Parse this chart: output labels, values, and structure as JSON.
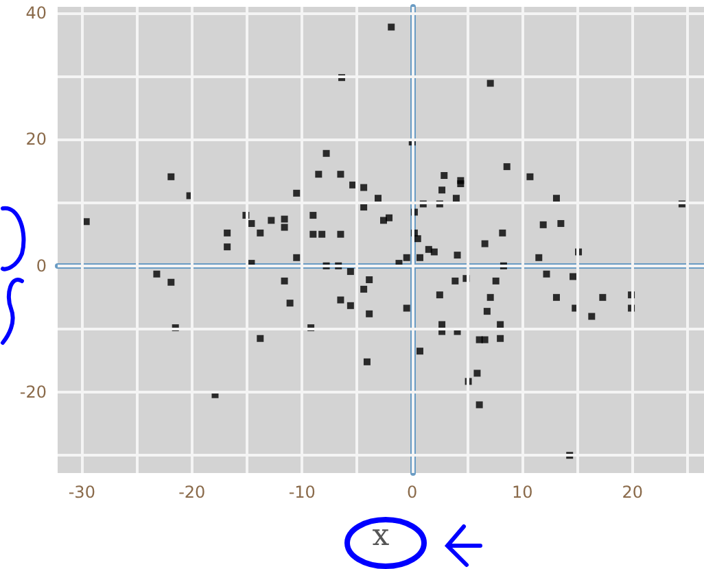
{
  "chart_data": {
    "type": "scatter",
    "xlabel": "x",
    "marker": "square",
    "grid": true,
    "xlim": [
      -32.2,
      26.5
    ],
    "ylim": [
      -32.8,
      41
    ],
    "xticks": [
      -30,
      {
        "value": -25,
        "label": null
      },
      -20,
      {
        "value": -15,
        "label": null
      },
      -10,
      {
        "value": -5,
        "label": null
      },
      0,
      {
        "value": 5,
        "label": null
      },
      10,
      {
        "value": 15,
        "label": null
      },
      20,
      {
        "value": 25,
        "label": null
      }
    ],
    "yticks": [
      {
        "value": -30,
        "label": null
      },
      -20,
      {
        "value": -10,
        "label": null
      },
      0,
      {
        "value": 10,
        "label": null
      },
      20,
      {
        "value": 30,
        "label": null
      },
      40
    ],
    "series": [
      {
        "color": "#000000",
        "x": [
          -29.6,
          -21.9,
          -20.2,
          -15.1,
          -14.6,
          -12.8,
          -13.8,
          -16.8,
          -16.8,
          -14.6,
          -23.2,
          -21.9,
          -21.5,
          -13.8,
          -17.9,
          -1.9,
          -6.4,
          0,
          -7.8,
          -8.5,
          -6.5,
          -5.4,
          -4.4,
          -10.5,
          -3.1,
          -9.0,
          -11.6,
          -8.2,
          -9.0,
          -6.5,
          -4.4,
          -2.6,
          -2.1,
          2.9,
          4.4,
          4.4,
          2.7,
          4.0,
          2.5,
          1.0,
          0.2,
          0.2,
          0.5,
          -11.6,
          7.1,
          8.6,
          10.7,
          13.1,
          24.5,
          11.9,
          13.5,
          8.2,
          6.6,
          -10.5,
          -7.8,
          -6.7,
          -5.6,
          -11.6,
          -11.1,
          -9.2,
          -6.5,
          -5.6,
          -4.4,
          -3.9,
          -3.9,
          -4.1,
          -1.2,
          -0.5,
          -0.5,
          0.7,
          1.5,
          2.0,
          4.1,
          3.9,
          4.9,
          2.5,
          2.7,
          2.7,
          4.1,
          0.7,
          5.1,
          5.9,
          6.1,
          6.1,
          6.6,
          8.3,
          11.5,
          15.1,
          12.2,
          14.6,
          7.6,
          7.1,
          6.8,
          13.1,
          14.8,
          17.3,
          16.3,
          19.9,
          19.9,
          8.0,
          8.0,
          14.3
        ],
        "values": [
          7.0,
          14.1,
          11.1,
          8.0,
          6.7,
          7.2,
          5.2,
          5.2,
          3.0,
          0.4,
          -1.3,
          -2.6,
          -9.8,
          -11.5,
          -20.4,
          37.8,
          29.8,
          19.6,
          17.8,
          14.5,
          14.5,
          12.8,
          12.4,
          11.5,
          10.7,
          8.0,
          7.4,
          5.0,
          5.0,
          5.0,
          9.3,
          7.2,
          7.6,
          14.3,
          13.5,
          13.0,
          12.0,
          10.7,
          9.8,
          9.8,
          8.5,
          5.2,
          4.3,
          6.1,
          28.9,
          15.7,
          14.1,
          10.7,
          9.8,
          6.5,
          6.7,
          5.2,
          3.5,
          1.3,
          0,
          0,
          -0.9,
          -2.4,
          -5.9,
          -9.8,
          -5.4,
          -6.3,
          -3.7,
          -2.2,
          -7.6,
          -15.2,
          0.4,
          1.3,
          -6.7,
          1.3,
          2.6,
          2.2,
          1.7,
          -2.4,
          -2.0,
          -4.6,
          -9.3,
          -10.4,
          -10.4,
          -13.5,
          -18.3,
          -17.0,
          -22.0,
          -11.7,
          -11.7,
          0,
          1.3,
          2.2,
          -1.3,
          -1.7,
          -2.4,
          -5.0,
          -7.2,
          -5.0,
          -6.7,
          -5.0,
          -8.0,
          -4.6,
          -6.7,
          -9.3,
          -11.5,
          -30.0
        ]
      }
    ]
  }
}
